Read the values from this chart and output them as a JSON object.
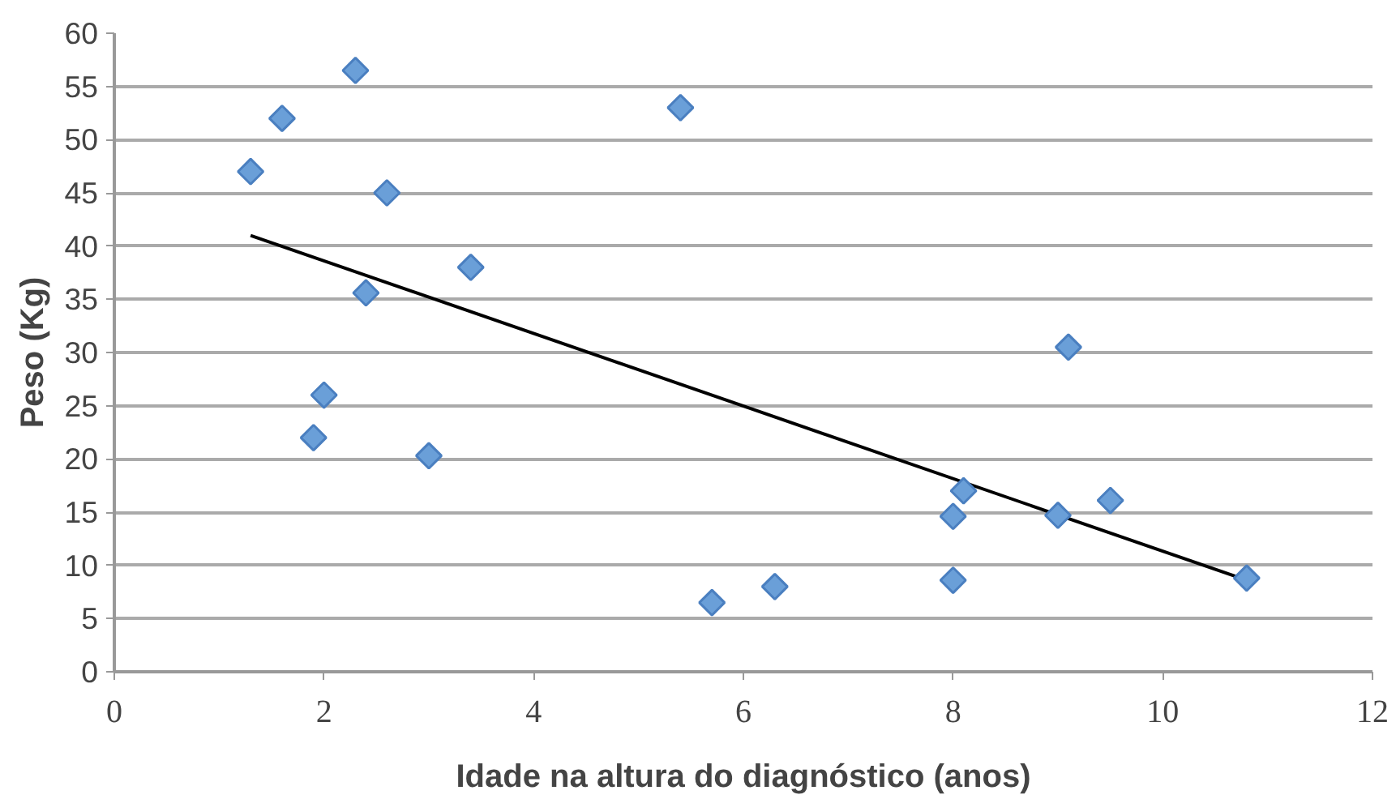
{
  "chart_data": {
    "type": "scatter",
    "xlabel": "Idade na altura do diagnóstico (anos)",
    "ylabel": "Peso (Kg)",
    "xlim": [
      0,
      12
    ],
    "ylim": [
      0,
      60
    ],
    "xticks": [
      0,
      2,
      4,
      6,
      8,
      10,
      12
    ],
    "yticks": [
      0,
      5,
      10,
      15,
      20,
      25,
      30,
      35,
      40,
      45,
      50,
      55,
      60
    ],
    "grid": "y",
    "series": [
      {
        "marker": "diamond",
        "color": "#6a9fd8",
        "x": [
          1.3,
          1.6,
          2.3,
          2.6,
          3.4,
          2.4,
          2.0,
          1.9,
          3.0,
          5.4,
          5.7,
          6.3,
          8.0,
          8.1,
          8.0,
          9.1,
          9.0,
          9.5,
          10.8
        ],
        "values": [
          47.0,
          52.0,
          56.5,
          45.0,
          38.0,
          35.6,
          26.0,
          22.0,
          20.3,
          53.0,
          6.5,
          8.0,
          14.6,
          17.0,
          8.6,
          30.5,
          14.7,
          16.1,
          8.8
        ]
      },
      {
        "type": "line",
        "color": "#000000",
        "x": [
          1.3,
          10.8
        ],
        "values": [
          41.0,
          8.6
        ]
      }
    ]
  }
}
